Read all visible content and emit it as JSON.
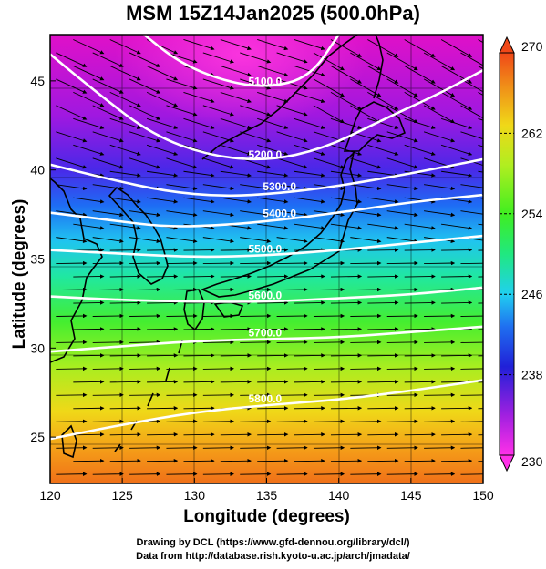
{
  "title": "MSM 15Z14Jan2025 (500.0hPa)",
  "x_axis_label": "Longitude (degrees)",
  "y_axis_label": "Latitude  (degrees)",
  "credit_line_1": "Drawing by DCL (https://www.gfd-dennou.org/library/dcl/)",
  "credit_line_2": "Data from http://database.rish.kyoto-u.ac.jp/arch/jmadata/",
  "chart_data": {
    "type": "heatmap",
    "xlim": [
      120,
      150
    ],
    "ylim": [
      22.4,
      47.6
    ],
    "x_ticks": [
      "120",
      "125",
      "130",
      "135",
      "140",
      "145",
      "150"
    ],
    "y_ticks": [
      "25",
      "30",
      "35",
      "40",
      "45"
    ],
    "colorbar": {
      "min": 230,
      "max": 270,
      "tick_labels": [
        "230",
        "238",
        "246",
        "254",
        "262",
        "270"
      ]
    },
    "contours": [
      {
        "label": "5100.0",
        "points": [
          [
            126.5,
            47.6
          ],
          [
            129,
            46
          ],
          [
            132,
            45
          ],
          [
            135,
            44.6
          ],
          [
            138,
            45.2
          ],
          [
            140,
            47.6
          ]
        ]
      },
      {
        "label": "5200.0",
        "points": [
          [
            120,
            46.5
          ],
          [
            123,
            44.5
          ],
          [
            127,
            42
          ],
          [
            131,
            40.8
          ],
          [
            135,
            40.5
          ],
          [
            139,
            41.2
          ],
          [
            143,
            42.8
          ],
          [
            147,
            44.3
          ],
          [
            150,
            45.6
          ]
        ]
      },
      {
        "label": "5300.0",
        "points": [
          [
            120,
            40.3
          ],
          [
            124,
            39.5
          ],
          [
            128,
            38.8
          ],
          [
            132,
            38.5
          ],
          [
            136,
            38.7
          ],
          [
            140,
            39.1
          ],
          [
            145,
            39.8
          ],
          [
            150,
            40.6
          ]
        ]
      },
      {
        "label": "5400.0",
        "points": [
          [
            120,
            37.6
          ],
          [
            124,
            37.2
          ],
          [
            128,
            36.8
          ],
          [
            132,
            36.9
          ],
          [
            136,
            37.2
          ],
          [
            140,
            37.6
          ],
          [
            145,
            38.2
          ],
          [
            150,
            38.6
          ]
        ]
      },
      {
        "label": "5500.0",
        "points": [
          [
            120,
            35.5
          ],
          [
            125,
            35.3
          ],
          [
            130,
            35.1
          ],
          [
            135,
            35.2
          ],
          [
            140,
            35.5
          ],
          [
            145,
            35.9
          ],
          [
            150,
            36.3
          ]
        ]
      },
      {
        "label": "5600.0",
        "points": [
          [
            120,
            32.9
          ],
          [
            125,
            32.7
          ],
          [
            130,
            32.6
          ],
          [
            135,
            32.6
          ],
          [
            140,
            32.8
          ],
          [
            145,
            33.0
          ],
          [
            150,
            33.4
          ]
        ]
      },
      {
        "label": "5700.0",
        "points": [
          [
            120,
            29.8
          ],
          [
            125,
            30.1
          ],
          [
            130,
            30.4
          ],
          [
            135,
            30.5
          ],
          [
            140,
            30.6
          ],
          [
            145,
            30.9
          ],
          [
            150,
            31.2
          ]
        ]
      },
      {
        "label": "5800.0",
        "points": [
          [
            120,
            24.9
          ],
          [
            125,
            25.7
          ],
          [
            130,
            26.4
          ],
          [
            135,
            26.8
          ],
          [
            140,
            27.1
          ],
          [
            145,
            27.6
          ],
          [
            150,
            28.2
          ]
        ]
      }
    ]
  }
}
